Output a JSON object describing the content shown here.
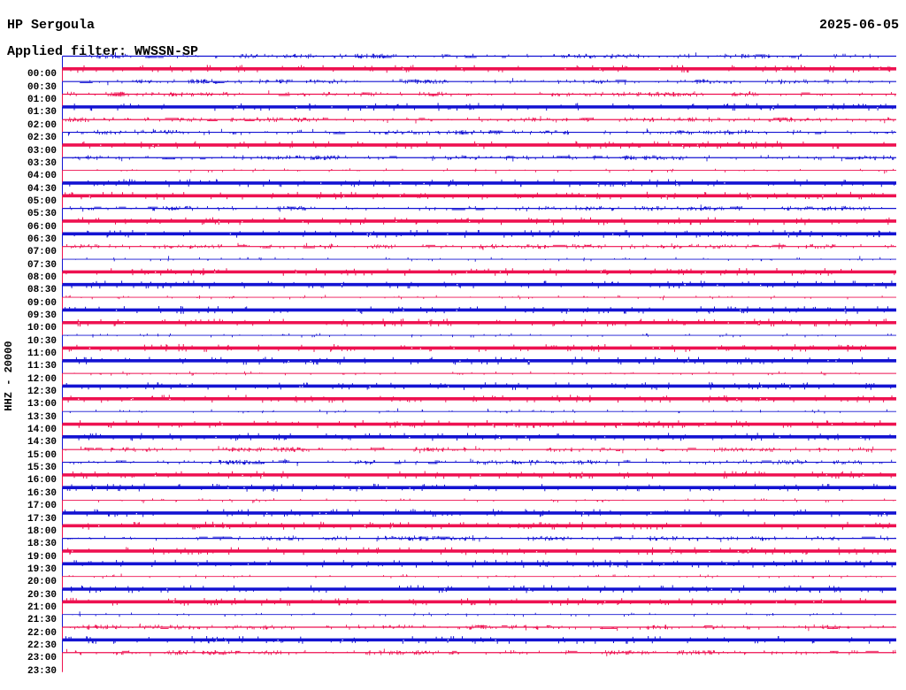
{
  "header": {
    "station": "HP Sergoula",
    "date": "2025-06-05",
    "filter_label": "Applied filter: WWSSN-SP"
  },
  "y_axis_label": "HHZ - 20000",
  "colors": {
    "trace_red": "#ee1150",
    "trace_blue": "#1313d2",
    "text": "#000000",
    "background": "#ffffff"
  },
  "chart_data": {
    "type": "line",
    "subtype": "helicorder-seismogram",
    "title": "HP Sergoula",
    "date": "2025-06-05",
    "applied_filter": "WWSSN-SP",
    "channel_scale_label": "HHZ - 20000",
    "minutes_per_row": 30,
    "legend_position": "none",
    "grid": false,
    "rows": [
      {
        "time": "00:00",
        "color": "blue",
        "amplitude": "moderate"
      },
      {
        "time": "00:30",
        "color": "red",
        "amplitude": "high"
      },
      {
        "time": "01:00",
        "color": "blue",
        "amplitude": "moderate"
      },
      {
        "time": "01:30",
        "color": "red",
        "amplitude": "moderate"
      },
      {
        "time": "02:00",
        "color": "blue",
        "amplitude": "high"
      },
      {
        "time": "02:30",
        "color": "red",
        "amplitude": "moderate"
      },
      {
        "time": "03:00",
        "color": "blue",
        "amplitude": "moderate"
      },
      {
        "time": "03:30",
        "color": "red",
        "amplitude": "high"
      },
      {
        "time": "04:00",
        "color": "blue",
        "amplitude": "moderate"
      },
      {
        "time": "04:30",
        "color": "red",
        "amplitude": "low"
      },
      {
        "time": "05:00",
        "color": "blue",
        "amplitude": "high"
      },
      {
        "time": "05:30",
        "color": "red",
        "amplitude": "high"
      },
      {
        "time": "06:00",
        "color": "blue",
        "amplitude": "moderate"
      },
      {
        "time": "06:30",
        "color": "red",
        "amplitude": "high"
      },
      {
        "time": "07:00",
        "color": "blue",
        "amplitude": "high"
      },
      {
        "time": "07:30",
        "color": "red",
        "amplitude": "moderate"
      },
      {
        "time": "08:00",
        "color": "blue",
        "amplitude": "low"
      },
      {
        "time": "08:30",
        "color": "red",
        "amplitude": "high"
      },
      {
        "time": "09:00",
        "color": "blue",
        "amplitude": "high"
      },
      {
        "time": "09:30",
        "color": "red",
        "amplitude": "low"
      },
      {
        "time": "10:00",
        "color": "blue",
        "amplitude": "high"
      },
      {
        "time": "10:30",
        "color": "red",
        "amplitude": "high"
      },
      {
        "time": "11:00",
        "color": "blue",
        "amplitude": "low"
      },
      {
        "time": "11:30",
        "color": "red",
        "amplitude": "high"
      },
      {
        "time": "12:00",
        "color": "blue",
        "amplitude": "high"
      },
      {
        "time": "12:30",
        "color": "red",
        "amplitude": "low"
      },
      {
        "time": "13:00",
        "color": "blue",
        "amplitude": "high"
      },
      {
        "time": "13:30",
        "color": "red",
        "amplitude": "high"
      },
      {
        "time": "14:00",
        "color": "blue",
        "amplitude": "low"
      },
      {
        "time": "14:30",
        "color": "red",
        "amplitude": "high"
      },
      {
        "time": "15:00",
        "color": "blue",
        "amplitude": "high"
      },
      {
        "time": "15:30",
        "color": "red",
        "amplitude": "moderate"
      },
      {
        "time": "16:00",
        "color": "blue",
        "amplitude": "moderate"
      },
      {
        "time": "16:30",
        "color": "red",
        "amplitude": "high"
      },
      {
        "time": "17:00",
        "color": "blue",
        "amplitude": "high"
      },
      {
        "time": "17:30",
        "color": "red",
        "amplitude": "low"
      },
      {
        "time": "18:00",
        "color": "blue",
        "amplitude": "high"
      },
      {
        "time": "18:30",
        "color": "red",
        "amplitude": "high"
      },
      {
        "time": "19:00",
        "color": "blue",
        "amplitude": "moderate"
      },
      {
        "time": "19:30",
        "color": "red",
        "amplitude": "high"
      },
      {
        "time": "20:00",
        "color": "blue",
        "amplitude": "high"
      },
      {
        "time": "20:30",
        "color": "red",
        "amplitude": "low"
      },
      {
        "time": "21:00",
        "color": "blue",
        "amplitude": "high"
      },
      {
        "time": "21:30",
        "color": "red",
        "amplitude": "high"
      },
      {
        "time": "22:00",
        "color": "blue",
        "amplitude": "low"
      },
      {
        "time": "22:30",
        "color": "red",
        "amplitude": "moderate"
      },
      {
        "time": "23:00",
        "color": "blue",
        "amplitude": "high"
      },
      {
        "time": "23:30",
        "color": "red",
        "amplitude": "moderate"
      }
    ]
  }
}
